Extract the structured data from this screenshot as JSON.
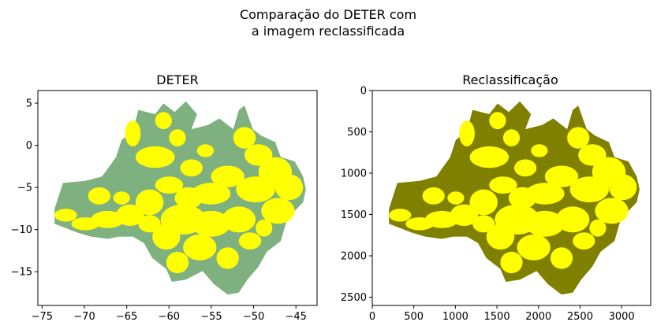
{
  "figure": {
    "suptitle_lines": [
      "Comparação do DETER com",
      "a imagem reclassificada"
    ]
  },
  "chart_data": [
    {
      "type": "map",
      "title": "DETER",
      "xlabel": "",
      "ylabel": "",
      "xlim": [
        -75.5,
        -42.5
      ],
      "ylim": [
        -19,
        6.5
      ],
      "xticks": [
        -75,
        -70,
        -65,
        -60,
        -55,
        -50,
        -45
      ],
      "yticks": [
        5,
        0,
        -5,
        -10,
        -15
      ],
      "grid": false,
      "colors": {
        "region": "#7fb07f",
        "detection": "#ffff00"
      }
    },
    {
      "type": "image",
      "title": "Reclassificação",
      "xlabel": "",
      "ylabel": "",
      "xlim": [
        0,
        3350
      ],
      "ylim": [
        2600,
        0
      ],
      "xticks": [
        0,
        500,
        1000,
        1500,
        2000,
        2500,
        3000
      ],
      "yticks": [
        0,
        500,
        1000,
        1500,
        2000,
        2500
      ],
      "grid": false,
      "colors": {
        "region": "#808000",
        "detection": "#ffff00"
      }
    }
  ]
}
